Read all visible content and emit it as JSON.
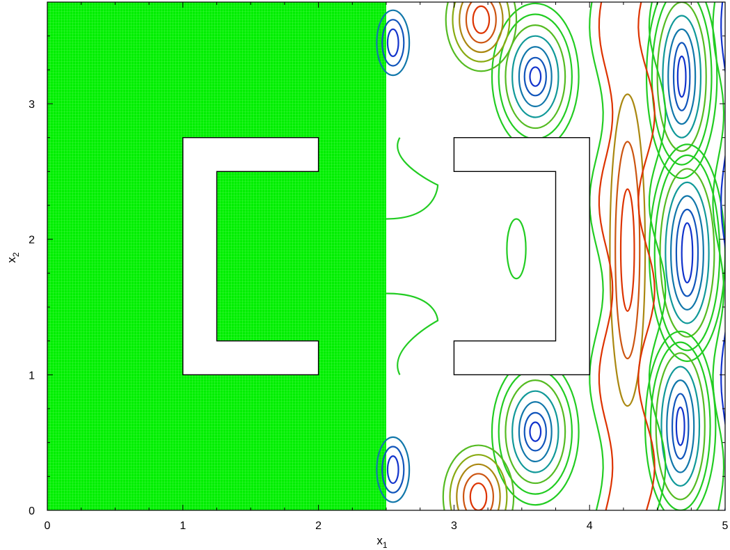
{
  "chart_data": {
    "type": "contour",
    "title": "",
    "xlabel": "x",
    "xlabel_sub": "1",
    "ylabel": "x",
    "ylabel_sub": "2",
    "xlim": [
      0,
      5
    ],
    "ylim": [
      0,
      3.75
    ],
    "xticks": [
      0,
      1,
      2,
      3,
      4,
      5
    ],
    "yticks": [
      0,
      1,
      2,
      3
    ],
    "grid": false,
    "left_panel": {
      "description_kind": "mesh",
      "x_range": [
        0,
        2.5
      ],
      "y_range": [
        0,
        3.75
      ],
      "color": "#00e600"
    },
    "obstacles": [
      {
        "name": "left-bracket",
        "outline": [
          [
            1,
            1
          ],
          [
            2,
            1
          ],
          [
            2,
            1.25
          ],
          [
            1.25,
            1.25
          ],
          [
            1.25,
            2.5
          ],
          [
            2,
            2.5
          ],
          [
            2,
            2.75
          ],
          [
            1,
            2.75
          ]
        ]
      },
      {
        "name": "right-bracket",
        "outline": [
          [
            3,
            1
          ],
          [
            4,
            1
          ],
          [
            4,
            2.75
          ],
          [
            3,
            2.75
          ],
          [
            3,
            2.5
          ],
          [
            3.75,
            2.5
          ],
          [
            3.75,
            1.25
          ],
          [
            3,
            1.25
          ]
        ]
      }
    ],
    "contour_colors": [
      "#22cc22",
      "#55bb22",
      "#88aa11",
      "#aa8811",
      "#cc5511",
      "#dd3300",
      "#119999",
      "#1177aa",
      "#1155bb",
      "#1133cc"
    ],
    "contour_features": [
      {
        "kind": "ellipse",
        "cx": 3.6,
        "cy": 3.2,
        "rx": [
          0.04,
          0.08,
          0.12,
          0.17,
          0.22,
          0.27,
          0.32
        ],
        "ry": [
          0.07,
          0.14,
          0.22,
          0.3,
          0.38,
          0.46,
          0.54
        ],
        "tone": "low"
      },
      {
        "kind": "ellipse",
        "cx": 3.6,
        "cy": 0.58,
        "rx": [
          0.04,
          0.08,
          0.12,
          0.17,
          0.22,
          0.27,
          0.32
        ],
        "ry": [
          0.07,
          0.14,
          0.22,
          0.3,
          0.38,
          0.46,
          0.54
        ],
        "tone": "low"
      },
      {
        "kind": "ellipse",
        "cx": 4.68,
        "cy": 3.2,
        "rx": [
          0.03,
          0.06,
          0.1,
          0.14,
          0.18,
          0.22,
          0.26
        ],
        "ry": [
          0.15,
          0.25,
          0.35,
          0.45,
          0.55,
          0.65,
          0.75
        ],
        "tone": "low"
      },
      {
        "kind": "ellipse",
        "cx": 4.72,
        "cy": 1.9,
        "rx": [
          0.04,
          0.08,
          0.12,
          0.16,
          0.2,
          0.24,
          0.28
        ],
        "ry": [
          0.22,
          0.32,
          0.42,
          0.52,
          0.62,
          0.72,
          0.8
        ],
        "tone": "low"
      },
      {
        "kind": "ellipse",
        "cx": 4.67,
        "cy": 0.62,
        "rx": [
          0.03,
          0.06,
          0.1,
          0.14,
          0.18,
          0.22,
          0.26
        ],
        "ry": [
          0.14,
          0.24,
          0.34,
          0.44,
          0.54,
          0.62,
          0.7
        ],
        "tone": "low"
      },
      {
        "kind": "ellipse",
        "cx": 4.28,
        "cy": 1.92,
        "rx": [
          0.05,
          0.09,
          0.13
        ],
        "ry": [
          0.45,
          0.8,
          1.15
        ],
        "tone": "high"
      },
      {
        "kind": "ellipse",
        "cx": 3.46,
        "cy": 1.93,
        "rx": [
          0.07
        ],
        "ry": [
          0.22
        ],
        "tone": "mid"
      },
      {
        "kind": "ellipse",
        "cx": 3.2,
        "cy": 3.62,
        "rx": [
          0.06,
          0.11,
          0.16,
          0.21,
          0.26
        ],
        "ry": [
          0.1,
          0.17,
          0.24,
          0.31,
          0.38
        ],
        "tone": "high"
      },
      {
        "kind": "ellipse",
        "cx": 3.18,
        "cy": 0.1,
        "rx": [
          0.06,
          0.11,
          0.16,
          0.21,
          0.26
        ],
        "ry": [
          0.1,
          0.17,
          0.24,
          0.31,
          0.38
        ],
        "tone": "high"
      },
      {
        "kind": "ellipse",
        "cx": 2.55,
        "cy": 3.45,
        "rx": [
          0.04,
          0.08,
          0.12
        ],
        "ry": [
          0.1,
          0.17,
          0.24
        ],
        "tone": "low"
      },
      {
        "kind": "ellipse",
        "cx": 2.55,
        "cy": 0.3,
        "rx": [
          0.04,
          0.08,
          0.12
        ],
        "ry": [
          0.1,
          0.17,
          0.24
        ],
        "tone": "low"
      },
      {
        "kind": "wave",
        "x0": 2.5,
        "y0": 2.15,
        "peak_x": 2.88,
        "peak_y": 2.4,
        "x_end": 2.5,
        "y_end": 2.75,
        "tone": "mid"
      },
      {
        "kind": "wave",
        "x0": 2.5,
        "y0": 1.6,
        "peak_x": 2.88,
        "peak_y": 1.4,
        "x_end": 2.5,
        "y_end": 1.0,
        "tone": "mid"
      }
    ],
    "vertical_bands": [
      {
        "x": 4.05,
        "amp": 0.05,
        "tone": "mid"
      },
      {
        "x": 4.12,
        "amp": 0.05,
        "tone": "high"
      },
      {
        "x": 4.42,
        "amp": 0.06,
        "tone": "high"
      },
      {
        "x": 4.5,
        "amp": 0.06,
        "tone": "mid"
      },
      {
        "x": 4.95,
        "amp": 0.04,
        "tone": "mid"
      },
      {
        "x": 5.0,
        "amp": 0.03,
        "tone": "low"
      }
    ]
  }
}
